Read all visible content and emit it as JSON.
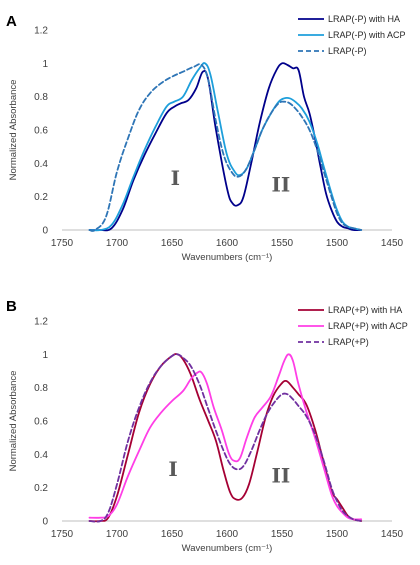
{
  "chart_data": [
    {
      "panel": "A",
      "type": "line",
      "xlabel": "Wavenumbers (cm⁻¹)",
      "ylabel": "Normalized Absorbance",
      "xlim": [
        1750,
        1450
      ],
      "ylim": [
        0,
        1.2
      ],
      "xticks": [
        "1750",
        "1700",
        "1650",
        "1600",
        "1550",
        "1500",
        "1450"
      ],
      "yticks": [
        "0",
        "0.2",
        "0.4",
        "0.6",
        "0.8",
        "1",
        "1.2"
      ],
      "grid": false,
      "legend_position": "top-right",
      "annotations": [
        {
          "text": "I",
          "x": 1647,
          "y": 0.27
        },
        {
          "text": "II",
          "x": 1551,
          "y": 0.23
        }
      ],
      "series": [
        {
          "name": "LRAP(-P) with HA",
          "color": "#00008B",
          "dash": false,
          "x": [
            1725,
            1715,
            1705,
            1695,
            1685,
            1675,
            1665,
            1655,
            1648,
            1642,
            1635,
            1628,
            1622,
            1617,
            1610,
            1600,
            1595,
            1590,
            1585,
            1578,
            1570,
            1562,
            1555,
            1550,
            1545,
            1540,
            1535,
            1530,
            1525,
            1520,
            1515,
            1510,
            1505,
            1500,
            1495,
            1490,
            1485,
            1478
          ],
          "y": [
            0.0,
            0.0,
            0.01,
            0.12,
            0.3,
            0.45,
            0.58,
            0.7,
            0.74,
            0.76,
            0.78,
            0.85,
            0.95,
            0.9,
            0.6,
            0.25,
            0.16,
            0.15,
            0.2,
            0.4,
            0.65,
            0.85,
            0.96,
            1.0,
            0.99,
            0.97,
            0.96,
            0.8,
            0.7,
            0.55,
            0.38,
            0.22,
            0.12,
            0.05,
            0.02,
            0.01,
            0.0,
            0.0
          ]
        },
        {
          "name": "LRAP(-P) with ACP",
          "color": "#1E9FDB",
          "dash": false,
          "x": [
            1725,
            1715,
            1705,
            1695,
            1685,
            1675,
            1665,
            1655,
            1648,
            1640,
            1632,
            1625,
            1620,
            1615,
            1608,
            1600,
            1593,
            1588,
            1582,
            1575,
            1568,
            1560,
            1553,
            1548,
            1543,
            1538,
            1532,
            1525,
            1518,
            1512,
            1505,
            1500,
            1495,
            1490,
            1485,
            1478
          ],
          "y": [
            0.0,
            0.0,
            0.03,
            0.15,
            0.32,
            0.48,
            0.62,
            0.74,
            0.77,
            0.8,
            0.9,
            0.97,
            1.0,
            0.93,
            0.7,
            0.45,
            0.35,
            0.33,
            0.37,
            0.48,
            0.6,
            0.7,
            0.77,
            0.79,
            0.79,
            0.77,
            0.73,
            0.65,
            0.52,
            0.38,
            0.22,
            0.12,
            0.05,
            0.02,
            0.01,
            0.0
          ]
        },
        {
          "name": "LRAP(-P)",
          "color": "#2E75B6",
          "dash": true,
          "x": [
            1725,
            1720,
            1710,
            1700,
            1690,
            1680,
            1670,
            1660,
            1650,
            1640,
            1630,
            1623,
            1617,
            1610,
            1603,
            1596,
            1590,
            1583,
            1575,
            1568,
            1560,
            1553,
            1548,
            1543,
            1538,
            1532,
            1525,
            1518,
            1512,
            1505,
            1500,
            1495,
            1490,
            1485,
            1478
          ],
          "y": [
            0.0,
            0.0,
            0.08,
            0.35,
            0.55,
            0.72,
            0.82,
            0.88,
            0.92,
            0.95,
            0.98,
            0.99,
            0.9,
            0.65,
            0.45,
            0.35,
            0.32,
            0.36,
            0.48,
            0.6,
            0.7,
            0.76,
            0.77,
            0.76,
            0.73,
            0.68,
            0.6,
            0.48,
            0.35,
            0.2,
            0.1,
            0.04,
            0.02,
            0.01,
            0.0
          ]
        }
      ]
    },
    {
      "panel": "B",
      "type": "line",
      "xlabel": "Wavenumbers (cm⁻¹)",
      "ylabel": "Normalized Absorbance",
      "xlim": [
        1750,
        1450
      ],
      "ylim": [
        0,
        1.2
      ],
      "xticks": [
        "1750",
        "1700",
        "1650",
        "1600",
        "1550",
        "1500",
        "1450"
      ],
      "yticks": [
        "0",
        "0.2",
        "0.4",
        "0.6",
        "0.8",
        "1",
        "1.2"
      ],
      "grid": false,
      "legend_position": "top-right",
      "annotations": [
        {
          "text": "I",
          "x": 1649,
          "y": 0.27
        },
        {
          "text": "II",
          "x": 1551,
          "y": 0.23
        }
      ],
      "series": [
        {
          "name": "LRAP(+P) with HA",
          "color": "#A50034",
          "dash": false,
          "x": [
            1725,
            1715,
            1708,
            1700,
            1690,
            1680,
            1670,
            1660,
            1650,
            1645,
            1640,
            1633,
            1625,
            1617,
            1610,
            1603,
            1597,
            1592,
            1586,
            1580,
            1573,
            1565,
            1558,
            1551,
            1546,
            1540,
            1535,
            1528,
            1520,
            1512,
            1505,
            1500,
            1495,
            1490,
            1485,
            1478
          ],
          "y": [
            0.0,
            0.0,
            0.02,
            0.15,
            0.4,
            0.65,
            0.82,
            0.93,
            0.99,
            1.0,
            0.97,
            0.88,
            0.73,
            0.6,
            0.48,
            0.3,
            0.17,
            0.13,
            0.14,
            0.22,
            0.4,
            0.62,
            0.75,
            0.82,
            0.84,
            0.8,
            0.76,
            0.7,
            0.55,
            0.35,
            0.18,
            0.13,
            0.08,
            0.03,
            0.01,
            0.0
          ]
        },
        {
          "name": "LRAP(+P) with ACP",
          "color": "#FF3EE6",
          "dash": false,
          "x": [
            1725,
            1715,
            1708,
            1700,
            1690,
            1680,
            1670,
            1660,
            1650,
            1640,
            1633,
            1627,
            1623,
            1618,
            1612,
            1605,
            1598,
            1593,
            1588,
            1582,
            1575,
            1568,
            1560,
            1553,
            1548,
            1544,
            1540,
            1535,
            1528,
            1520,
            1512,
            1505,
            1500,
            1495,
            1490,
            1485,
            1478
          ],
          "y": [
            0.02,
            0.02,
            0.03,
            0.1,
            0.27,
            0.42,
            0.56,
            0.65,
            0.72,
            0.78,
            0.85,
            0.89,
            0.89,
            0.82,
            0.68,
            0.55,
            0.4,
            0.36,
            0.38,
            0.5,
            0.62,
            0.68,
            0.75,
            0.87,
            0.96,
            1.0,
            0.96,
            0.82,
            0.66,
            0.5,
            0.32,
            0.16,
            0.09,
            0.05,
            0.02,
            0.01,
            0.01
          ]
        },
        {
          "name": "LRAP(+P)",
          "color": "#7030A0",
          "dash": true,
          "x": [
            1725,
            1715,
            1708,
            1700,
            1690,
            1680,
            1670,
            1660,
            1650,
            1645,
            1640,
            1633,
            1625,
            1617,
            1610,
            1603,
            1597,
            1591,
            1585,
            1578,
            1570,
            1563,
            1556,
            1550,
            1545,
            1540,
            1535,
            1528,
            1520,
            1512,
            1505,
            1500,
            1495,
            1490,
            1485,
            1478
          ],
          "y": [
            0.0,
            0.0,
            0.05,
            0.22,
            0.48,
            0.68,
            0.83,
            0.93,
            0.99,
            1.0,
            0.98,
            0.93,
            0.82,
            0.67,
            0.54,
            0.42,
            0.34,
            0.31,
            0.33,
            0.42,
            0.55,
            0.65,
            0.72,
            0.76,
            0.76,
            0.73,
            0.69,
            0.63,
            0.52,
            0.36,
            0.2,
            0.12,
            0.06,
            0.03,
            0.01,
            0.0
          ]
        }
      ]
    }
  ]
}
